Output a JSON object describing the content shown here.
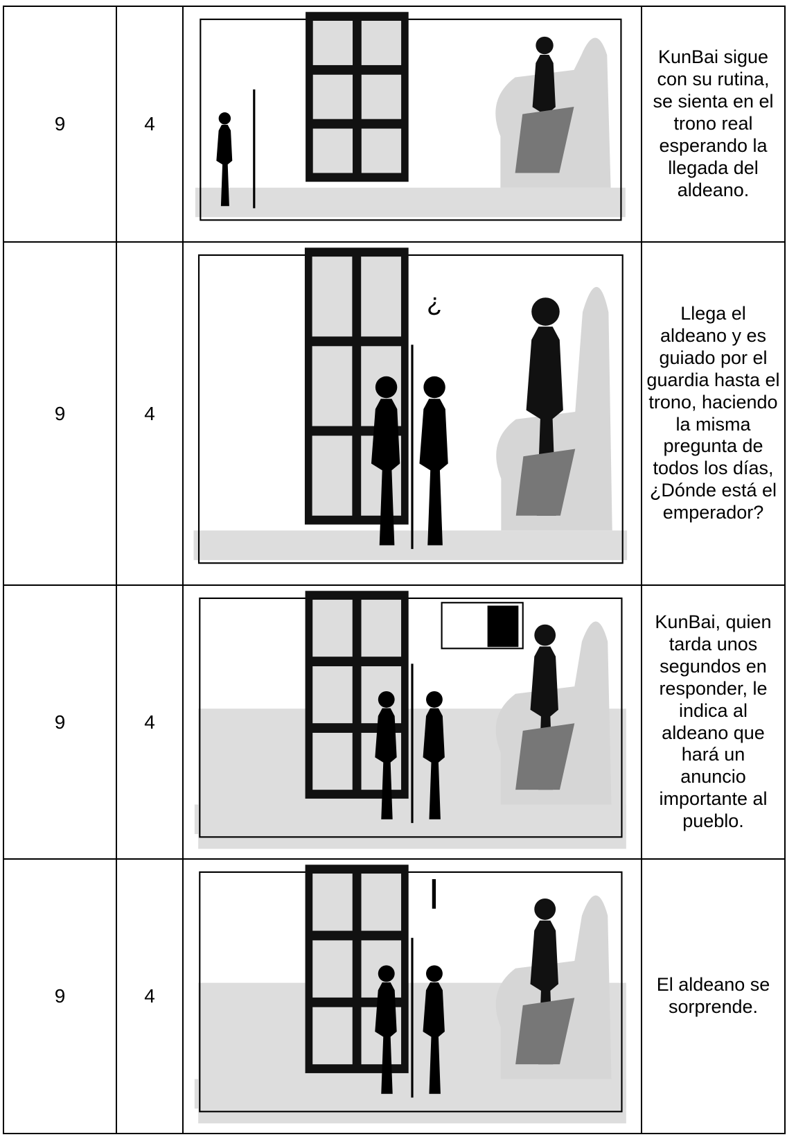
{
  "table": {
    "rows": [
      {
        "scene": "9",
        "shot": "4",
        "description": "KunBai sigue con su rutina, se sienta en el trono real esperando la llegada del aldeano."
      },
      {
        "scene": "9",
        "shot": "4",
        "description": "Llega el aldeano y es guiado por el guardia hasta el trono, haciendo la misma pregunta de todos los días, ¿Dónde está el emperador?"
      },
      {
        "scene": "9",
        "shot": "4",
        "description": "KunBai, quien tarda unos segundos en responder, le indica al aldeano que hará un anuncio importante al pueblo."
      },
      {
        "scene": "9",
        "shot": "4",
        "description": "El aldeano se sorprende."
      }
    ]
  }
}
